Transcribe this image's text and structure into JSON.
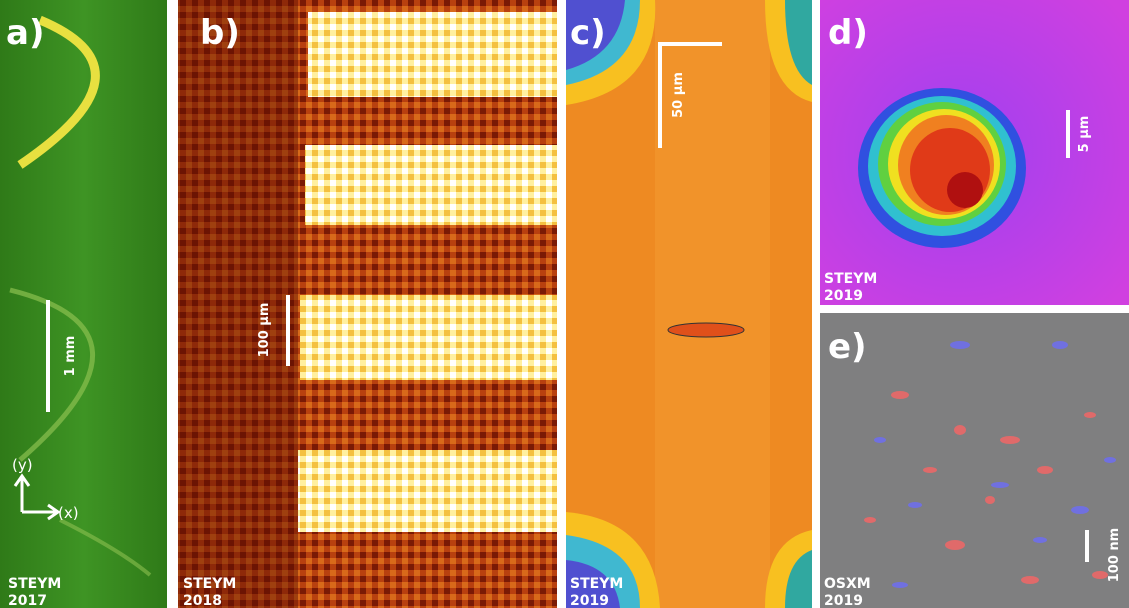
{
  "panels": [
    {
      "label": "a)",
      "scale_bar": "1 mm",
      "axes": [
        "(y)",
        "(x)"
      ],
      "instrument": "STEYM",
      "year": "2017"
    },
    {
      "label": "b)",
      "scale_bar": "100 µm",
      "instrument": "STEYM",
      "year": "2018"
    },
    {
      "label": "c)",
      "scale_bar": "50 µm",
      "instrument": "STEYM",
      "year": "2019"
    },
    {
      "label": "d)",
      "scale_bar": "5 µm",
      "instrument": "STEYM",
      "year": "2019"
    },
    {
      "label": "e)",
      "scale_bar": "100 nm",
      "instrument": "OSXM",
      "year": "2019"
    }
  ]
}
